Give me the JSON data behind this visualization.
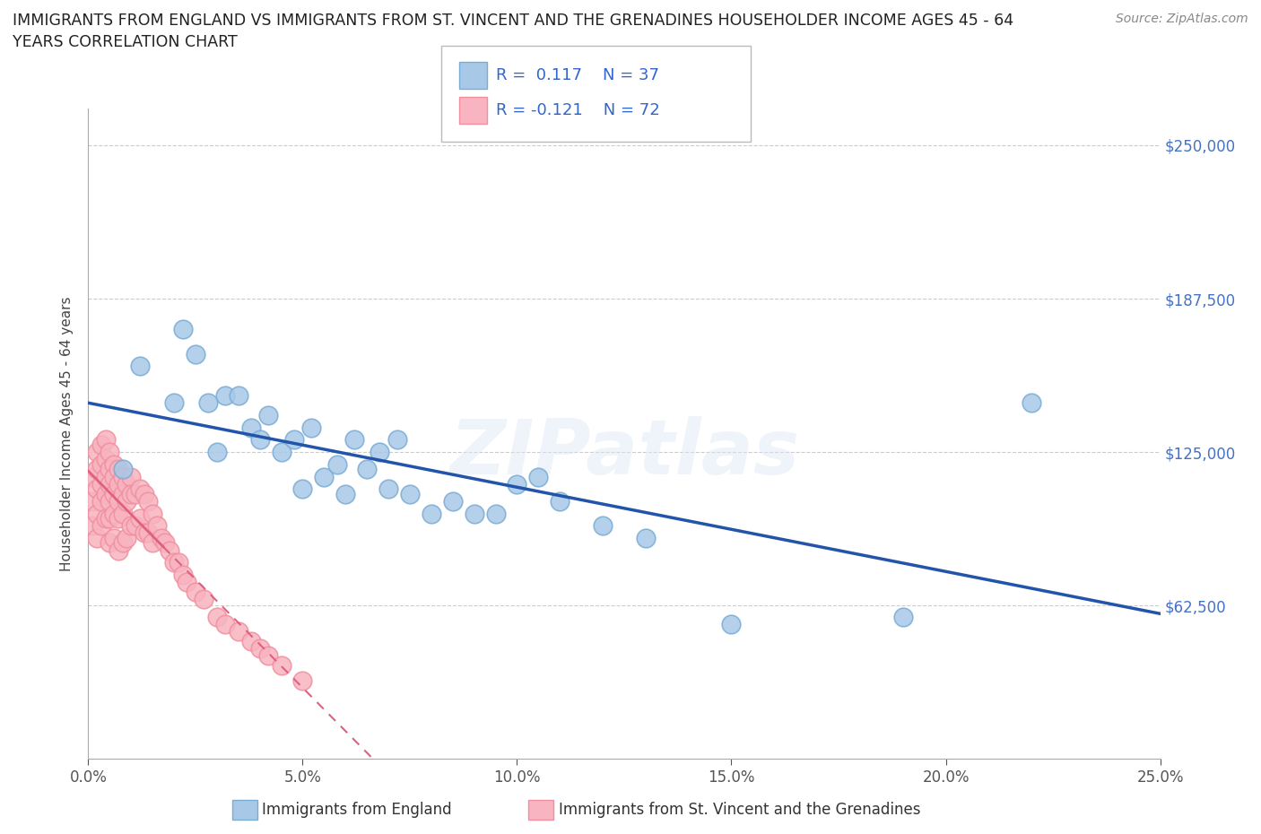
{
  "title": "IMMIGRANTS FROM ENGLAND VS IMMIGRANTS FROM ST. VINCENT AND THE GRENADINES HOUSEHOLDER INCOME AGES 45 - 64\nYEARS CORRELATION CHART",
  "source": "Source: ZipAtlas.com",
  "ylabel": "Householder Income Ages 45 - 64 years",
  "xlim": [
    0.0,
    0.25
  ],
  "ylim": [
    0,
    265000
  ],
  "xticks": [
    0.0,
    0.05,
    0.1,
    0.15,
    0.2,
    0.25
  ],
  "xticklabels": [
    "0.0%",
    "5.0%",
    "10.0%",
    "15.0%",
    "20.0%",
    "25.0%"
  ],
  "yticks": [
    62500,
    125000,
    187500,
    250000
  ],
  "yticklabels": [
    "$62,500",
    "$125,000",
    "$187,500",
    "$250,000"
  ],
  "england_color": "#a8c8e8",
  "england_edge": "#7aadd4",
  "stvincent_color": "#f8b4c0",
  "stvincent_edge": "#f090a0",
  "england_R": 0.117,
  "england_N": 37,
  "stvincent_R": -0.121,
  "stvincent_N": 72,
  "england_x": [
    0.008,
    0.012,
    0.02,
    0.022,
    0.025,
    0.028,
    0.03,
    0.032,
    0.035,
    0.038,
    0.04,
    0.042,
    0.045,
    0.048,
    0.05,
    0.052,
    0.055,
    0.058,
    0.06,
    0.062,
    0.065,
    0.068,
    0.07,
    0.072,
    0.075,
    0.08,
    0.085,
    0.09,
    0.095,
    0.1,
    0.105,
    0.11,
    0.12,
    0.13,
    0.15,
    0.19,
    0.22
  ],
  "england_y": [
    118000,
    160000,
    145000,
    175000,
    165000,
    145000,
    125000,
    148000,
    148000,
    135000,
    130000,
    140000,
    125000,
    130000,
    110000,
    135000,
    115000,
    120000,
    108000,
    130000,
    118000,
    125000,
    110000,
    130000,
    108000,
    100000,
    105000,
    100000,
    100000,
    112000,
    115000,
    105000,
    95000,
    90000,
    55000,
    58000,
    145000
  ],
  "stvincent_x": [
    0.001,
    0.001,
    0.001,
    0.002,
    0.002,
    0.002,
    0.002,
    0.002,
    0.003,
    0.003,
    0.003,
    0.003,
    0.003,
    0.004,
    0.004,
    0.004,
    0.004,
    0.004,
    0.005,
    0.005,
    0.005,
    0.005,
    0.005,
    0.005,
    0.006,
    0.006,
    0.006,
    0.006,
    0.006,
    0.007,
    0.007,
    0.007,
    0.007,
    0.007,
    0.008,
    0.008,
    0.008,
    0.008,
    0.009,
    0.009,
    0.009,
    0.01,
    0.01,
    0.01,
    0.011,
    0.011,
    0.012,
    0.012,
    0.013,
    0.013,
    0.014,
    0.014,
    0.015,
    0.015,
    0.016,
    0.017,
    0.018,
    0.019,
    0.02,
    0.021,
    0.022,
    0.023,
    0.025,
    0.027,
    0.03,
    0.032,
    0.035,
    0.038,
    0.04,
    0.042,
    0.045,
    0.05
  ],
  "stvincent_y": [
    115000,
    105000,
    95000,
    125000,
    118000,
    110000,
    100000,
    90000,
    128000,
    120000,
    112000,
    105000,
    95000,
    130000,
    122000,
    115000,
    108000,
    98000,
    125000,
    118000,
    112000,
    105000,
    98000,
    88000,
    120000,
    115000,
    108000,
    100000,
    90000,
    118000,
    112000,
    105000,
    98000,
    85000,
    115000,
    108000,
    100000,
    88000,
    112000,
    105000,
    90000,
    115000,
    108000,
    95000,
    108000,
    95000,
    110000,
    98000,
    108000,
    92000,
    105000,
    92000,
    100000,
    88000,
    95000,
    90000,
    88000,
    85000,
    80000,
    80000,
    75000,
    72000,
    68000,
    65000,
    58000,
    55000,
    52000,
    48000,
    45000,
    42000,
    38000,
    32000
  ],
  "background_color": "#ffffff",
  "watermark": "ZIPatlas",
  "legend_england": "Immigrants from England",
  "legend_stvincent": "Immigrants from St. Vincent and the Grenadines",
  "eng_trend_color": "#2255aa",
  "stv_trend_color": "#e06080"
}
